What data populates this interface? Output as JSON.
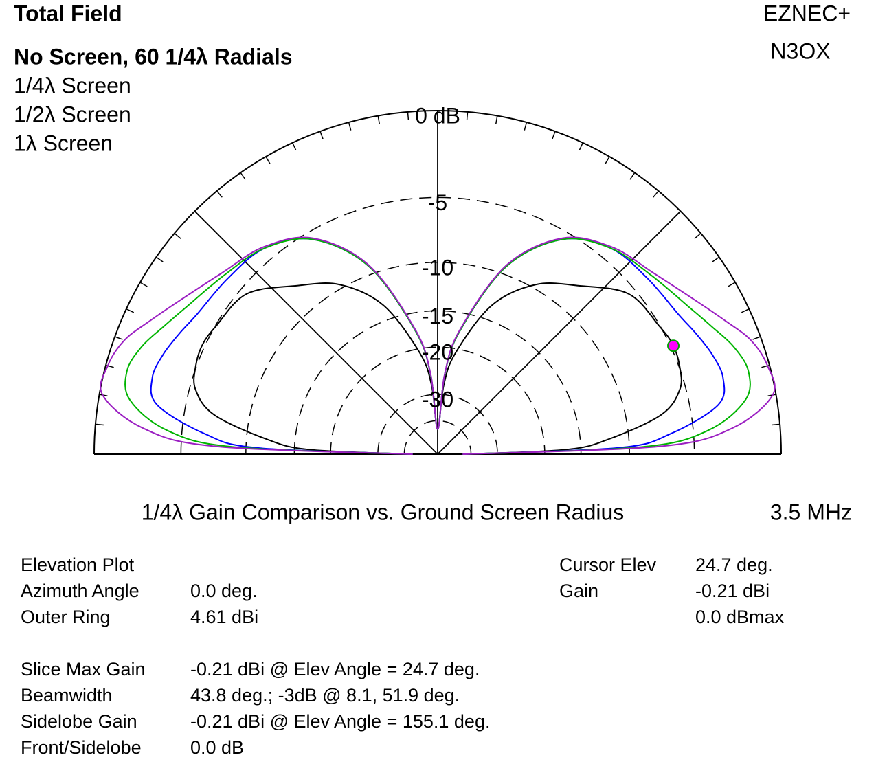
{
  "chart_data": {
    "type": "polar-elevation",
    "title": "Total Field",
    "program": "EZNEC+",
    "callsign": "N3OX",
    "subtitle": "1/4λ Gain Comparison vs. Ground Screen Radius",
    "frequency": "3.5 MHz",
    "radial_scale": "arrl-log",
    "rticks": [
      {
        "value": 0,
        "label": "0 dB"
      },
      -5,
      -10,
      -15,
      -20,
      -30,
      {
        "value": -40,
        "label": null
      }
    ],
    "elevation_gridlines": [
      0,
      45,
      90,
      135,
      180
    ],
    "elevation_ticks": [
      0,
      5,
      10,
      15,
      20,
      25,
      30,
      35,
      40,
      45,
      50,
      55,
      60,
      65,
      70,
      75,
      80,
      85,
      90,
      95,
      100,
      105,
      110,
      115,
      120,
      125,
      130,
      135,
      140,
      145,
      150,
      155,
      160,
      165,
      170,
      175,
      180
    ],
    "x": [
      0,
      2,
      5,
      10,
      15,
      20,
      25,
      30,
      40,
      50,
      60,
      70,
      80,
      85,
      90,
      95,
      100,
      110,
      120,
      130,
      140,
      150,
      155,
      160,
      165,
      170,
      175,
      178,
      180
    ],
    "series": [
      {
        "name": "No Screen, 60 1/4λ Radials",
        "color": "#000000",
        "values": [
          -45,
          -17,
          -11.9,
          -7.1,
          -5.4,
          -4.95,
          -4.82,
          -5.05,
          -5.5,
          -7.66,
          -9.65,
          -13.3,
          -20.7,
          -27.6,
          -45,
          -27.6,
          -20.7,
          -13.3,
          -9.65,
          -7.66,
          -5.5,
          -5.05,
          -4.82,
          -4.95,
          -5.4,
          -7.1,
          -11.9,
          -17,
          -45
        ]
      },
      {
        "name": "1/4λ Screen",
        "color": "#0000ff",
        "values": [
          -45,
          -11,
          -6.6,
          -3.2,
          -2.59,
          -2.79,
          -3.2,
          -3.6,
          -3.9,
          -4.2,
          -5.6,
          -9.35,
          -17.5,
          -25.2,
          -45,
          -25.2,
          -17.5,
          -9.35,
          -5.6,
          -4.2,
          -3.9,
          -3.6,
          -3.2,
          -2.79,
          -2.59,
          -3.2,
          -6.6,
          -11,
          -45
        ]
      },
      {
        "name": "1/2λ Screen",
        "color": "#00b400",
        "values": [
          -45,
          -9,
          -4.05,
          -1.62,
          -1.13,
          -1.5,
          -2.2,
          -2.8,
          -3.6,
          -4.2,
          -5.6,
          -9.35,
          -17.5,
          -25.2,
          -45,
          -25.2,
          -17.5,
          -9.35,
          -5.6,
          -4.2,
          -3.6,
          -2.8,
          -2.2,
          -1.5,
          -1.13,
          -1.62,
          -4.05,
          -9,
          -45
        ]
      },
      {
        "name": "1λ Screen",
        "color": "#9b1fc2",
        "values": [
          -45,
          -7.5,
          -2.6,
          -0.17,
          -0.1,
          -0.52,
          -1.4,
          -2.2,
          -3.4,
          -4.1,
          -5.5,
          -9.2,
          -17.3,
          -25,
          -45,
          -25,
          -17.3,
          -9.2,
          -5.5,
          -4.1,
          -3.4,
          -2.2,
          -1.4,
          -0.52,
          -0.1,
          -0.17,
          -2.6,
          -7.5,
          -45
        ]
      }
    ],
    "cursor": {
      "elevation": 24.7,
      "gain": -4.82,
      "color": "#ff00ff"
    }
  },
  "info": {
    "left_top": [
      {
        "label": "Elevation Plot"
      },
      {
        "label": "Azimuth Angle",
        "value": "0.0 deg."
      },
      {
        "label": "Outer Ring",
        "value": "4.61 dBi"
      }
    ],
    "left_bottom": [
      {
        "label": "Slice Max Gain",
        "value": "-0.21 dBi @ Elev Angle = 24.7 deg."
      },
      {
        "label": "Beamwidth",
        "value": "43.8 deg.; -3dB @ 8.1, 51.9 deg."
      },
      {
        "label": "Sidelobe Gain",
        "value": "-0.21 dBi @ Elev Angle = 155.1 deg."
      },
      {
        "label": "Front/Sidelobe",
        "value": "0.0 dB"
      }
    ],
    "right": [
      {
        "label": "Cursor Elev",
        "value": "24.7 deg."
      },
      {
        "label": "Gain",
        "value": "-0.21 dBi"
      },
      {
        "value": "0.0 dBmax"
      }
    ]
  }
}
